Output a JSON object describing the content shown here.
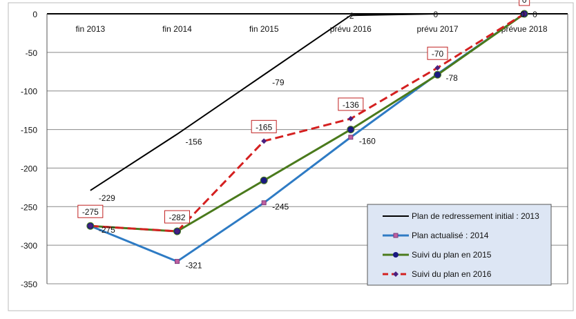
{
  "chart_data": {
    "type": "line",
    "title": "",
    "xlabel": "",
    "ylabel": "",
    "categories": [
      "fin 2013",
      "fin 2014",
      "fin 2015",
      "prévu 2016",
      "prévu 2017",
      "prévue 2018"
    ],
    "ylim": [
      -350,
      0
    ],
    "yticks": [
      0,
      -50,
      -100,
      -150,
      -200,
      -250,
      -300,
      -350
    ],
    "grid": true,
    "legend_position": "bottom-right",
    "series": [
      {
        "name": "Plan de redressement initial : 2013",
        "color": "#000000",
        "style": "solid",
        "marker": "none",
        "values": [
          -229,
          -156,
          -79,
          -2,
          0,
          0
        ],
        "labels": [
          "-229",
          "-156",
          "-79",
          "-2",
          "0",
          "0"
        ]
      },
      {
        "name": "Plan actualisé : 2014",
        "color": "#2e7bc4",
        "style": "solid",
        "marker": "square",
        "values": [
          -275,
          -321,
          -245,
          -160,
          -78,
          0
        ],
        "labels": [
          "-275",
          "-321",
          "-245",
          "-160",
          "-78",
          "0"
        ]
      },
      {
        "name": "Suivi du plan en 2015",
        "color": "#4a7a1c",
        "style": "solid",
        "marker": "circle",
        "values": [
          -275,
          -282,
          -216,
          -150,
          -79,
          0
        ],
        "labels": []
      },
      {
        "name": "Suivi du plan en 2016",
        "color": "#d42020",
        "style": "dashed",
        "marker": "diamond",
        "values": [
          -275,
          -282,
          -165,
          -136,
          -70,
          0
        ],
        "labels": [
          "-275",
          "-282",
          "-165",
          "-136",
          "-70",
          "0"
        ]
      }
    ]
  }
}
